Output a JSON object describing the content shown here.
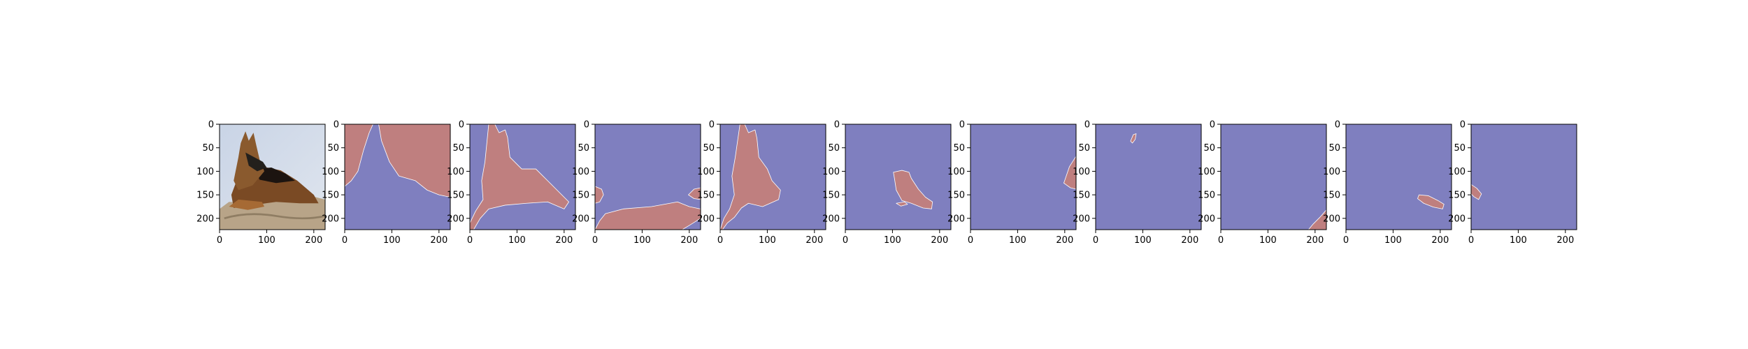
{
  "figure": {
    "background": "#ffffff"
  },
  "colors": {
    "background_class": "#7f7fbf",
    "mask_class": "#bf7f7f",
    "boundary": "#ffffff",
    "axes": "#000000"
  },
  "chart_data": {
    "type": "image-grid",
    "panel_count": 11,
    "panels": [
      {
        "kind": "photo",
        "subject": "german-shepherd-dog-lying-on-cushion"
      },
      {
        "kind": "mask",
        "mask_index": 1
      },
      {
        "kind": "mask",
        "mask_index": 2
      },
      {
        "kind": "mask",
        "mask_index": 3
      },
      {
        "kind": "mask",
        "mask_index": 4
      },
      {
        "kind": "mask",
        "mask_index": 5
      },
      {
        "kind": "mask",
        "mask_index": 6
      },
      {
        "kind": "mask",
        "mask_index": 7
      },
      {
        "kind": "mask",
        "mask_index": 8
      },
      {
        "kind": "mask",
        "mask_index": 9
      },
      {
        "kind": "mask",
        "mask_index": 10
      }
    ],
    "xlim": [
      0,
      224
    ],
    "ylim": [
      224,
      0
    ],
    "xticks": [
      0,
      100,
      200
    ],
    "yticks": [
      0,
      50,
      100,
      150,
      200
    ],
    "grid": false
  }
}
